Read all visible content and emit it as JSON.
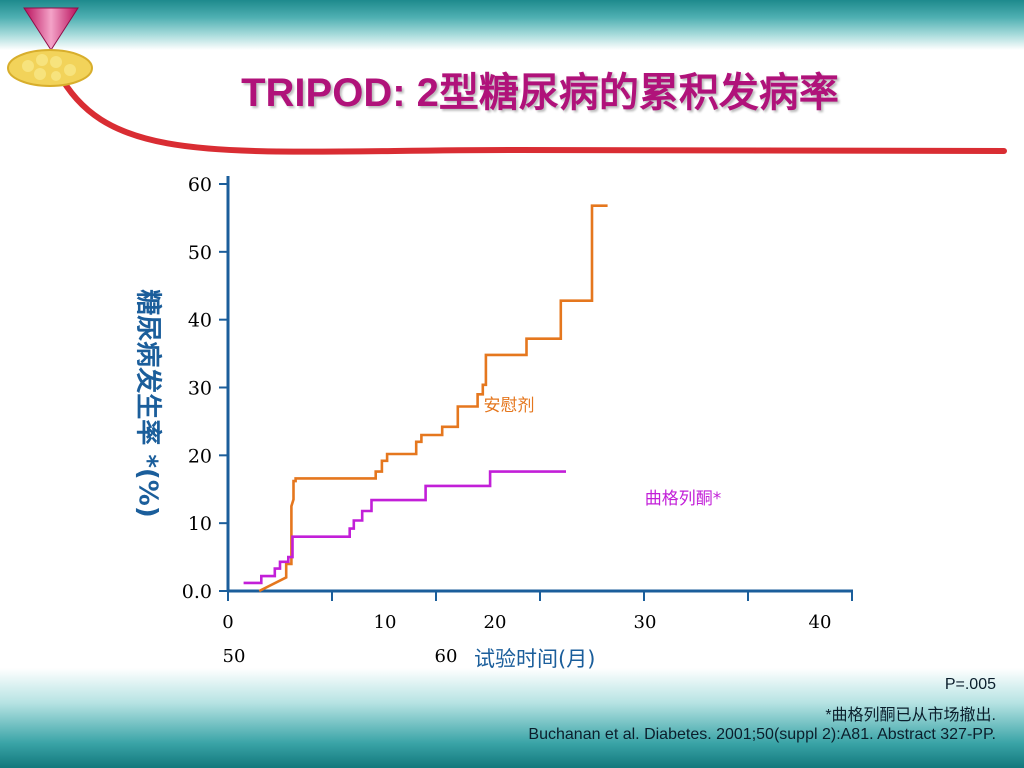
{
  "title": "TRIPOD: 2型糖尿病的累积发病率",
  "colors": {
    "placebo": "#e5771e",
    "troglitazone": "#c21fd8",
    "axis": "#1b5e9b",
    "title": "#b0127a"
  },
  "chart_data": {
    "type": "line",
    "title": "TRIPOD: 2型糖尿病的累积发病率",
    "ylabel": "糖尿病发生率 *(%)",
    "xlabel": "试验时间(月)",
    "ylim": [
      0,
      60
    ],
    "y_ticks": [
      "0.0",
      "10",
      "20",
      "30",
      "40",
      "50",
      "60"
    ],
    "x_ticks": [
      "0",
      "10",
      "20",
      "30",
      "40",
      "50",
      "60"
    ],
    "x_tick_count": 7,
    "grid": false,
    "series": [
      {
        "name": "安慰剂",
        "color": "#e5771e",
        "step": true,
        "x": [
          3.0,
          5.6,
          5.6,
          6.1,
          6.1,
          6.3,
          6.3,
          6.5,
          6.5,
          14.2,
          14.2,
          14.8,
          14.8,
          15.3,
          15.3,
          18.1,
          18.1,
          18.6,
          18.6,
          20.6,
          20.6,
          22.1,
          22.1,
          24.0,
          24.0,
          24.5,
          24.5,
          24.8,
          24.8,
          28.7,
          28.7,
          32.0,
          32.0,
          35.0,
          35.0,
          36.5
        ],
        "y": [
          0,
          2,
          4,
          4,
          12.5,
          13.5,
          16.2,
          16.2,
          16.6,
          16.6,
          17.6,
          17.6,
          19.2,
          19.2,
          20.2,
          20.2,
          22.0,
          22.0,
          23.0,
          23.0,
          24.2,
          24.2,
          27.2,
          27.2,
          29.0,
          29.0,
          30.4,
          30.4,
          34.8,
          34.8,
          37.2,
          37.2,
          42.8,
          42.8,
          56.8,
          56.8
        ]
      },
      {
        "name": "曲格列酮*",
        "color": "#c21fd8",
        "step": true,
        "x": [
          1.5,
          3.2,
          3.2,
          4.5,
          4.5,
          5.0,
          5.0,
          5.8,
          5.8,
          6.2,
          6.2,
          11.7,
          11.7,
          12.1,
          12.1,
          12.9,
          12.9,
          13.8,
          13.8,
          19.0,
          19.0,
          25.2,
          25.2,
          25.8,
          25.8,
          26.4,
          26.4,
          32.5
        ],
        "y": [
          1.2,
          1.2,
          2.2,
          2.2,
          3.3,
          3.3,
          4.3,
          4.3,
          5.0,
          5.0,
          8.0,
          8.0,
          9.2,
          9.2,
          10.4,
          10.4,
          11.8,
          11.8,
          13.4,
          13.4,
          15.5,
          15.5,
          17.6,
          17.6,
          17.6,
          17.6,
          17.6,
          17.6
        ]
      }
    ]
  },
  "footer": {
    "p_value": "P=.005",
    "note": "*曲格列酮已从市场撤出.",
    "citation": "Buchanan et al. Diabetes. 2001;50(suppl 2):A81. Abstract 327-PP."
  }
}
